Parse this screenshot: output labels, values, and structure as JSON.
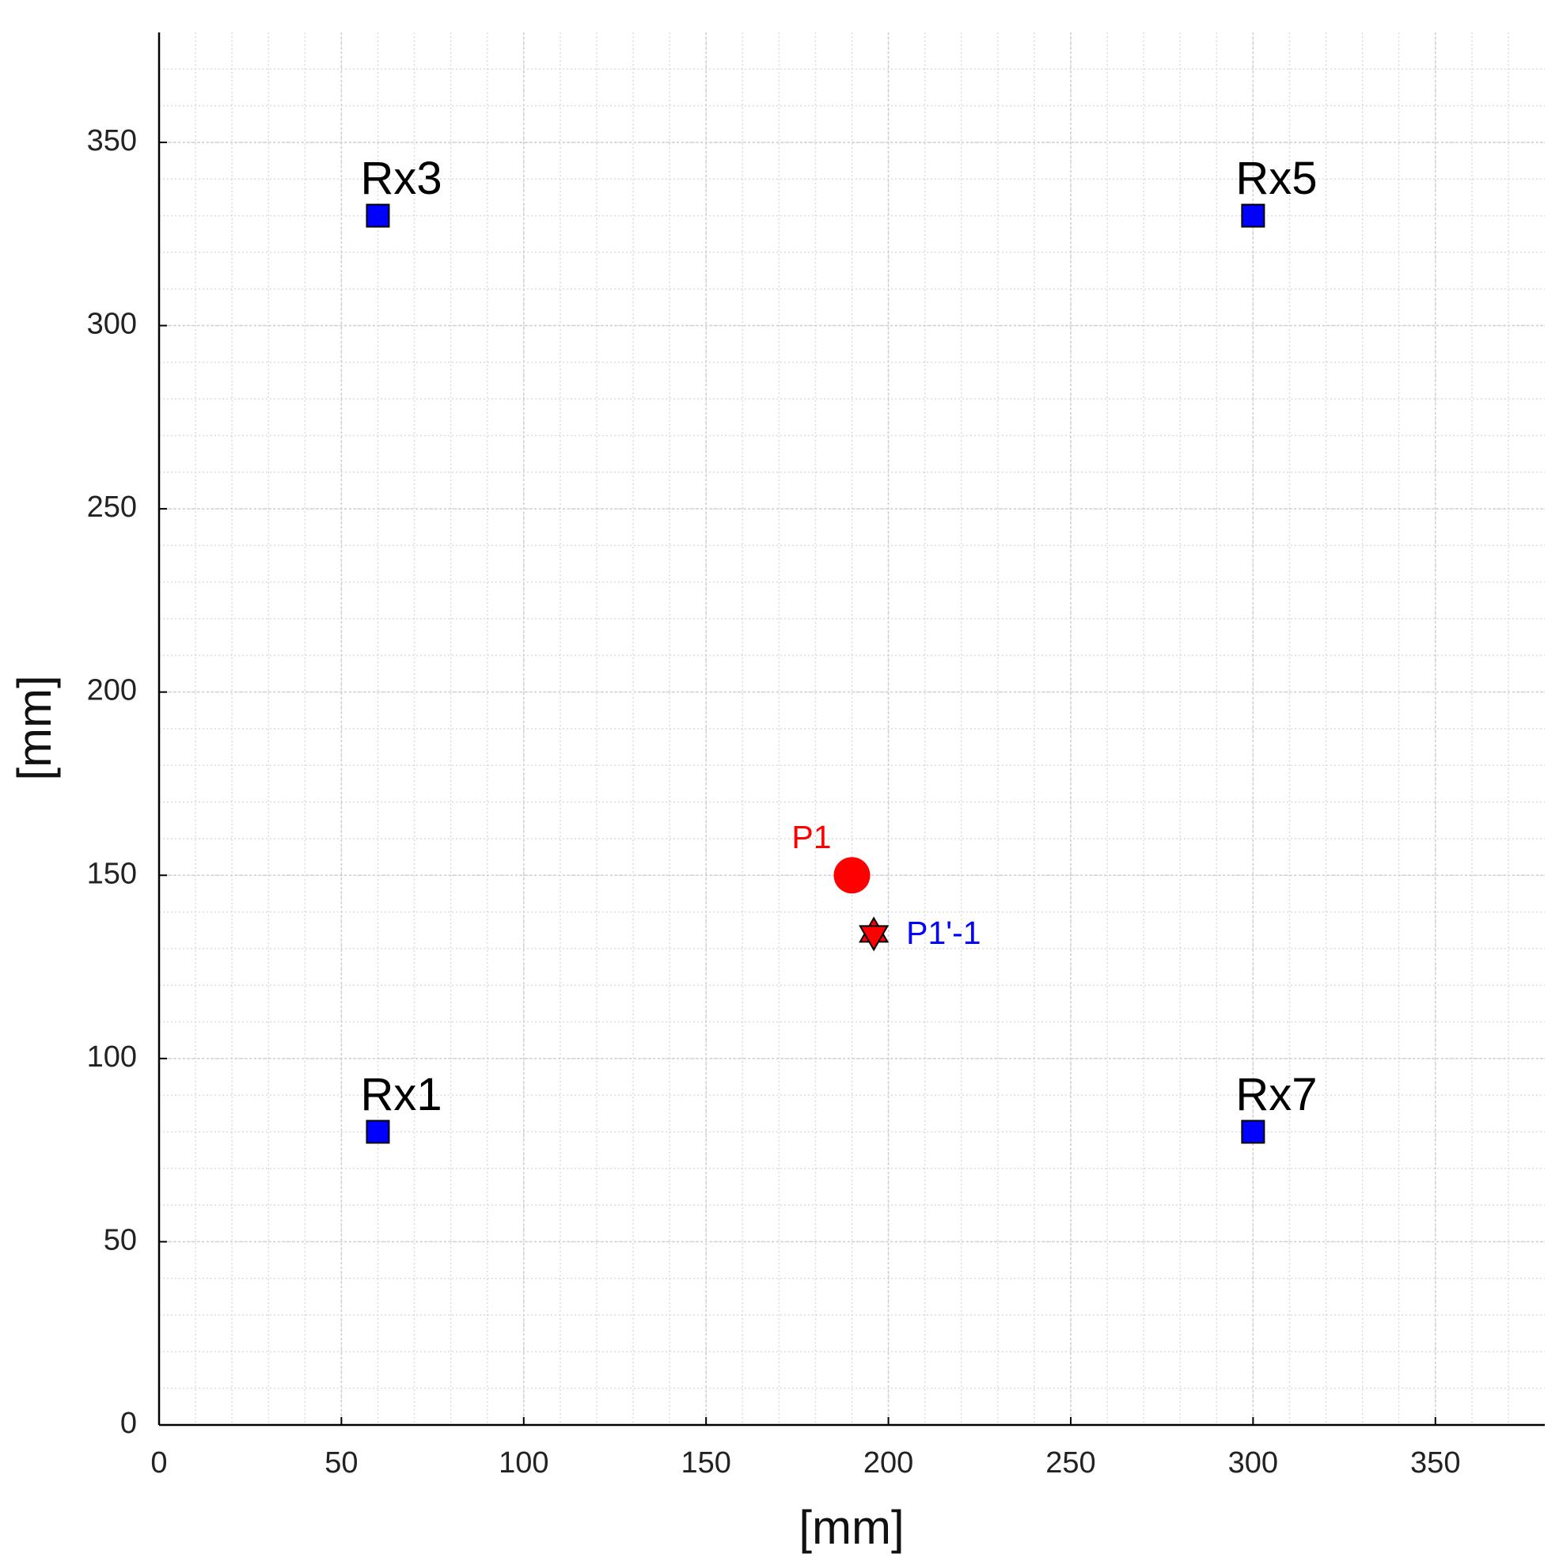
{
  "chart_data": {
    "type": "scatter",
    "x_label": "[mm]",
    "y_label": "[mm]",
    "xlim": [
      0,
      380
    ],
    "ylim": [
      0,
      380
    ],
    "xticks": [
      0,
      50,
      100,
      150,
      200,
      250,
      300,
      350
    ],
    "yticks": [
      0,
      50,
      100,
      150,
      200,
      250,
      300,
      350
    ],
    "grid": true,
    "minor_grid": true,
    "points": [
      {
        "label": "Rx1",
        "x": 60,
        "y": 80,
        "marker": "square",
        "color": "#0000ff",
        "label_color": "#000000",
        "label_position": "above"
      },
      {
        "label": "Rx3",
        "x": 60,
        "y": 330,
        "marker": "square",
        "color": "#0000ff",
        "label_color": "#000000",
        "label_position": "above"
      },
      {
        "label": "Rx5",
        "x": 300,
        "y": 330,
        "marker": "square",
        "color": "#0000ff",
        "label_color": "#000000",
        "label_position": "above"
      },
      {
        "label": "Rx7",
        "x": 300,
        "y": 80,
        "marker": "square",
        "color": "#0000ff",
        "label_color": "#000000",
        "label_position": "above"
      },
      {
        "label": "P1",
        "x": 190,
        "y": 150,
        "marker": "circle",
        "color": "#ff0000",
        "label_color": "#ff0000",
        "label_position": "upper-left"
      },
      {
        "label": "P1'-1",
        "x": 196,
        "y": 134,
        "marker": "hexagram",
        "color": "#ff0000",
        "label_color": "#0000ff",
        "label_position": "right"
      }
    ]
  }
}
